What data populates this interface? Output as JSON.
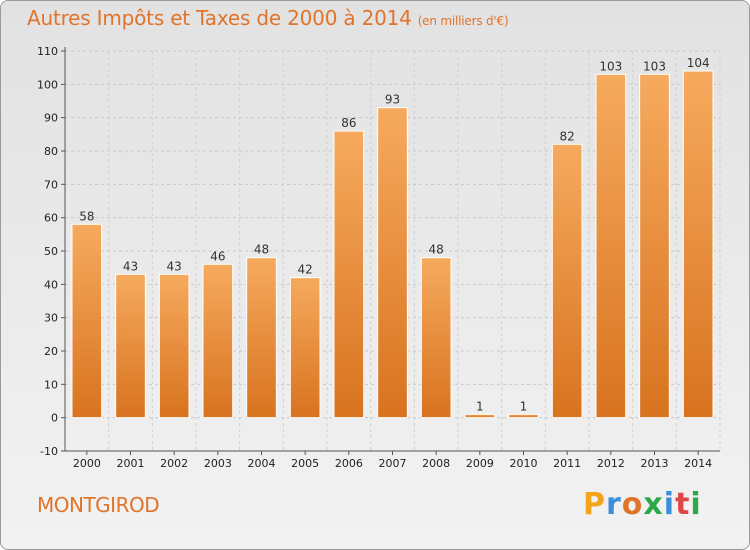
{
  "title": "Autres Impôts et Taxes de 2000 à 2014",
  "unit": "(en milliers d'€)",
  "town": "MONTGIROD",
  "brand": {
    "letters": [
      "P",
      "r",
      "o",
      "x",
      "i",
      "t",
      "i"
    ],
    "colors": [
      "#f2a51a",
      "#3a8fd8",
      "#e0742a",
      "#2aa84a",
      "#3a8fd8",
      "#e04646",
      "#2aa84a"
    ]
  },
  "chart_data": {
    "type": "bar",
    "title": "Autres Impôts et Taxes de 2000 à 2014",
    "subtitle": "(en milliers d'€)",
    "categories": [
      "2000",
      "2001",
      "2002",
      "2003",
      "2004",
      "2005",
      "2006",
      "2007",
      "2008",
      "2009",
      "2010",
      "2011",
      "2012",
      "2013",
      "2014"
    ],
    "values": [
      58,
      43,
      43,
      46,
      48,
      42,
      86,
      93,
      48,
      1,
      1,
      82,
      103,
      103,
      104
    ],
    "ylim": [
      -10,
      110
    ],
    "yticks": [
      -10,
      0,
      10,
      20,
      30,
      40,
      50,
      60,
      70,
      80,
      90,
      100,
      110
    ],
    "grid": true,
    "bar_color": "#e8832e"
  }
}
